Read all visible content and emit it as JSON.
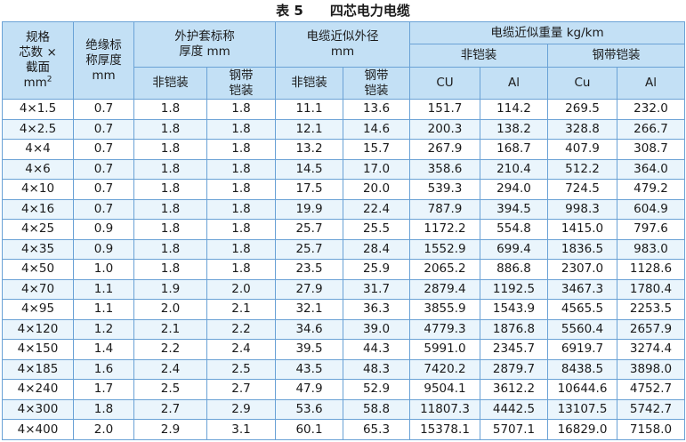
{
  "table_label": "表 5",
  "title": "四芯电力电缆",
  "headers": {
    "spec_line1": "规格",
    "spec_line2": "芯数 ×",
    "spec_line3": "截面",
    "spec_unit": "mm",
    "spec_unit_sup": "2",
    "insulation_line1": "绝缘标",
    "insulation_line2": "称厚度",
    "insulation_unit": "mm",
    "sheath_line1": "外护套标称",
    "sheath_line2": "厚度 mm",
    "diameter_line1": "电缆近似外径",
    "diameter_line2": "mm",
    "weight": "电缆近似重量 kg/km",
    "unarmored": "非铠装",
    "steel_tape_line1": "钢带",
    "steel_tape_line2": "铠装",
    "steel_tape_armored": "钢带铠装",
    "cu_upper": "CU",
    "al": "Al",
    "cu": "Cu"
  },
  "rows": [
    [
      "4×1.5",
      "0.7",
      "1.8",
      "1.8",
      "11.1",
      "13.6",
      "151.7",
      "114.2",
      "269.5",
      "232.0"
    ],
    [
      "4×2.5",
      "0.7",
      "1.8",
      "1.8",
      "12.1",
      "14.6",
      "200.3",
      "138.2",
      "328.8",
      "266.7"
    ],
    [
      "4×4",
      "0.7",
      "1.8",
      "1.8",
      "13.2",
      "15.7",
      "267.9",
      "168.7",
      "407.9",
      "308.7"
    ],
    [
      "4×6",
      "0.7",
      "1.8",
      "1.8",
      "14.5",
      "17.0",
      "358.6",
      "210.4",
      "512.2",
      "364.0"
    ],
    [
      "4×10",
      "0.7",
      "1.8",
      "1.8",
      "17.5",
      "20.0",
      "539.3",
      "294.0",
      "724.5",
      "479.2"
    ],
    [
      "4×16",
      "0.7",
      "1.8",
      "1.8",
      "19.9",
      "22.4",
      "787.9",
      "394.5",
      "998.3",
      "604.9"
    ],
    [
      "4×25",
      "0.9",
      "1.8",
      "1.8",
      "25.7",
      "25.5",
      "1172.2",
      "554.8",
      "1415.0",
      "797.6"
    ],
    [
      "4×35",
      "0.9",
      "1.8",
      "1.8",
      "25.7",
      "28.4",
      "1552.9",
      "699.4",
      "1836.5",
      "983.0"
    ],
    [
      "4×50",
      "1.0",
      "1.8",
      "1.8",
      "23.5",
      "25.9",
      "2065.2",
      "886.8",
      "2307.0",
      "1128.6"
    ],
    [
      "4×70",
      "1.1",
      "1.9",
      "2.0",
      "27.9",
      "31.7",
      "2879.4",
      "1192.5",
      "3467.3",
      "1780.4"
    ],
    [
      "4×95",
      "1.1",
      "2.0",
      "2.1",
      "32.1",
      "36.3",
      "3855.9",
      "1543.9",
      "4565.5",
      "2253.5"
    ],
    [
      "4×120",
      "1.2",
      "2.1",
      "2.2",
      "34.6",
      "39.0",
      "4779.3",
      "1876.8",
      "5560.4",
      "2657.9"
    ],
    [
      "4×150",
      "1.4",
      "2.2",
      "2.4",
      "39.5",
      "44.3",
      "5991.0",
      "2345.7",
      "6919.7",
      "3274.4"
    ],
    [
      "4×185",
      "1.6",
      "2.4",
      "2.5",
      "43.5",
      "48.3",
      "7420.2",
      "2879.7",
      "8438.5",
      "3898.0"
    ],
    [
      "4×240",
      "1.7",
      "2.5",
      "2.7",
      "47.9",
      "52.9",
      "9504.1",
      "3612.2",
      "10644.6",
      "4752.7"
    ],
    [
      "4×300",
      "1.8",
      "2.7",
      "2.9",
      "53.6",
      "58.8",
      "11807.3",
      "4442.5",
      "13107.5",
      "5742.7"
    ],
    [
      "4×400",
      "2.0",
      "2.9",
      "3.1",
      "60.1",
      "65.3",
      "15378.1",
      "5707.1",
      "16829.0",
      "7158.0"
    ]
  ]
}
